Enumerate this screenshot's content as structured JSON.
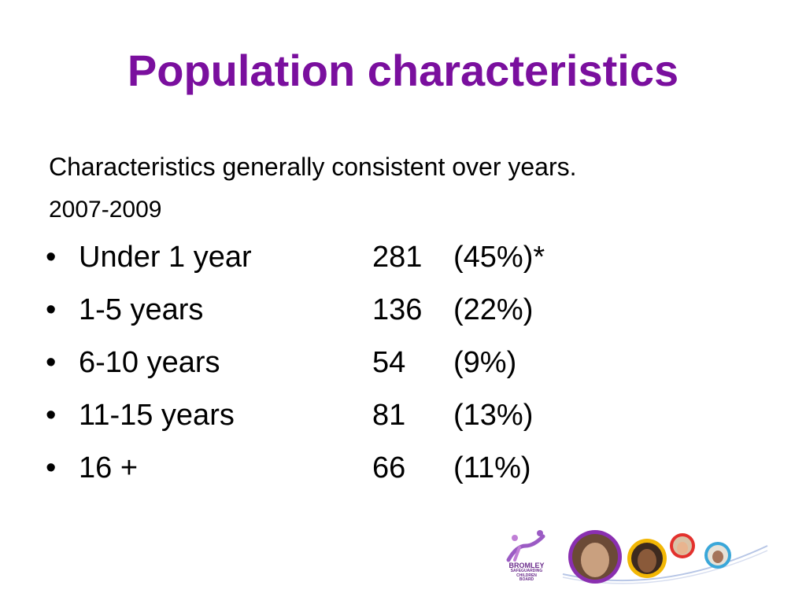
{
  "slide": {
    "title": "Population characteristics",
    "subtitle": "Characteristics generally consistent over years.",
    "period": "2007-2009",
    "bullet_marker": "•",
    "rows": [
      {
        "label": "Under 1 year",
        "count": "281",
        "percent": "(45%)*"
      },
      {
        "label": "1-5 years",
        "count": "136",
        "percent": "(22%)"
      },
      {
        "label": "6-10 years",
        "count": "54",
        "percent": "(9%)"
      },
      {
        "label": "11-15 years",
        "count": "81",
        "percent": "(13%)"
      },
      {
        "label": "16 +",
        "count": "66",
        "percent": "(11%)"
      }
    ]
  },
  "logo": {
    "name": "BROMLEY",
    "line2": "SAFEGUARDING",
    "line3": "CHILDREN",
    "line4": "BOARD",
    "brand_color": "#6b2d8c"
  },
  "colors": {
    "title": "#7a0f9e"
  }
}
